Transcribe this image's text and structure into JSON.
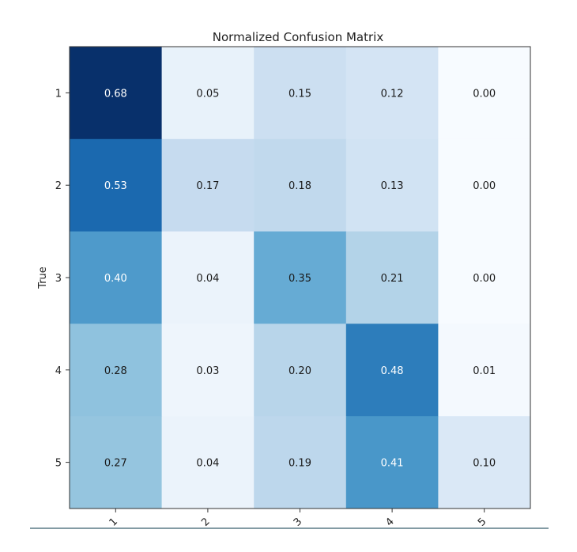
{
  "chart_data": {
    "type": "heatmap",
    "title": "Normalized Confusion Matrix",
    "ylabel": "True",
    "xlabel": "",
    "x_categories": [
      "1",
      "2",
      "3",
      "4",
      "5"
    ],
    "y_categories": [
      "1",
      "2",
      "3",
      "4",
      "5"
    ],
    "colormap": "Blues",
    "values": [
      [
        0.68,
        0.05,
        0.15,
        0.12,
        0.0
      ],
      [
        0.53,
        0.17,
        0.18,
        0.13,
        0.0
      ],
      [
        0.4,
        0.04,
        0.35,
        0.21,
        0.0
      ],
      [
        0.28,
        0.03,
        0.2,
        0.48,
        0.01
      ],
      [
        0.27,
        0.04,
        0.19,
        0.41,
        0.1
      ]
    ],
    "cell_labels": [
      [
        "0.68",
        "0.05",
        "0.15",
        "0.12",
        "0.00"
      ],
      [
        "0.53",
        "0.17",
        "0.18",
        "0.13",
        "0.00"
      ],
      [
        "0.40",
        "0.04",
        "0.35",
        "0.21",
        "0.00"
      ],
      [
        "0.28",
        "0.03",
        "0.20",
        "0.48",
        "0.01"
      ],
      [
        "0.27",
        "0.04",
        "0.19",
        "0.41",
        "0.10"
      ]
    ],
    "value_range": [
      0.0,
      0.68
    ]
  }
}
